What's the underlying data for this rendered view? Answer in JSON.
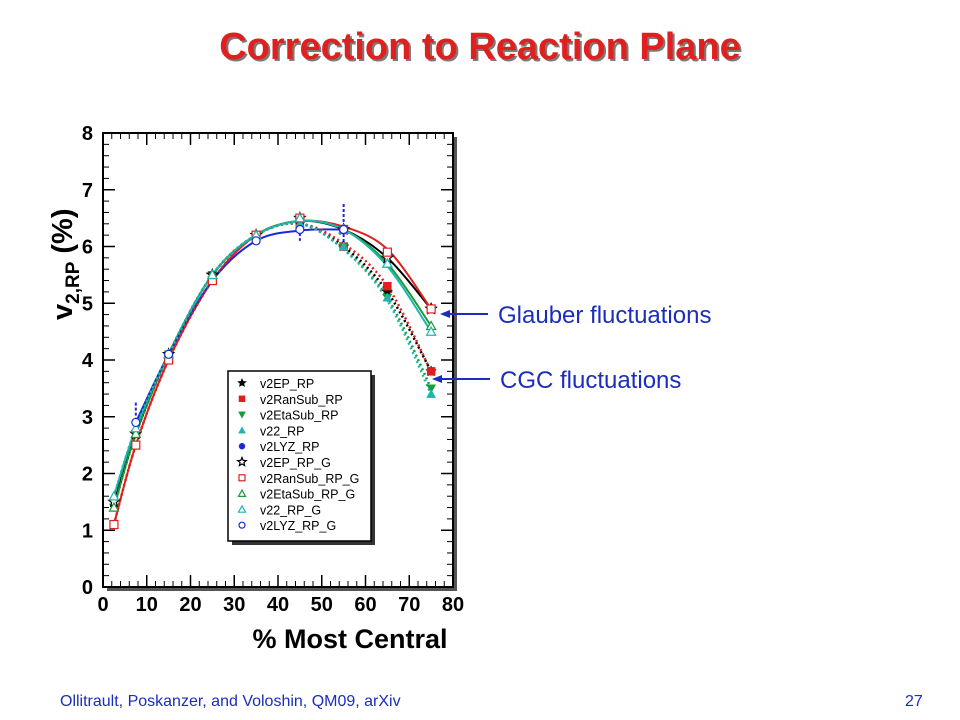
{
  "slide": {
    "title": "Correction to Reaction Plane",
    "callouts": {
      "glauber": "Glauber fluctuations",
      "cgc": "CGC fluctuations"
    },
    "footer_left": "Ollitrault, Poskanzer, and Voloshin, QM09, arXiv",
    "page_number": "27",
    "accent_color": "#e0201e",
    "callout_color": "#1b2dbd"
  },
  "chart_data": {
    "type": "scatter",
    "title": "",
    "xlabel": "% Most Central",
    "ylabel_main": "v",
    "ylabel_sub": "2,RP",
    "ylabel_unit": "(%)",
    "xlim": [
      0,
      80
    ],
    "ylim": [
      0,
      8
    ],
    "x_ticks": [
      0,
      10,
      20,
      30,
      40,
      50,
      60,
      70,
      80
    ],
    "y_ticks": [
      0,
      1,
      2,
      3,
      4,
      5,
      6,
      7,
      8
    ],
    "legend_position": "bottom-center",
    "series": [
      {
        "name": "v2EP_RP",
        "marker": "star-filled",
        "color": "#000000",
        "x": [
          2.5,
          7.5,
          15,
          25,
          35,
          45,
          55,
          65,
          75
        ],
        "y": [
          1.5,
          2.7,
          4.1,
          5.5,
          6.2,
          6.4,
          6.0,
          5.2,
          3.8
        ]
      },
      {
        "name": "v2RanSub_RP",
        "marker": "square-filled",
        "color": "#e01e1e",
        "x": [
          2.5,
          7.5,
          15,
          25,
          35,
          45,
          55,
          65,
          75
        ],
        "y": [
          1.1,
          2.5,
          4.0,
          5.4,
          6.2,
          6.4,
          6.0,
          5.3,
          3.8
        ]
      },
      {
        "name": "v2EtaSub_RP",
        "marker": "triangle-down-filled",
        "color": "#1a9a3a",
        "x": [
          2.5,
          7.5,
          15,
          25,
          35,
          45,
          55,
          65,
          75
        ],
        "y": [
          1.4,
          2.7,
          4.1,
          5.5,
          6.2,
          6.4,
          6.0,
          5.1,
          3.5
        ]
      },
      {
        "name": "v22_RP",
        "marker": "triangle-up-filled",
        "color": "#1fb5b0",
        "x": [
          2.5,
          7.5,
          15,
          25,
          35,
          45,
          55,
          65,
          75
        ],
        "y": [
          1.6,
          2.8,
          4.1,
          5.5,
          6.2,
          6.4,
          6.0,
          5.1,
          3.4
        ]
      },
      {
        "name": "v2LYZ_RP",
        "marker": "circle-filled",
        "color": "#1a2bd6",
        "x": [
          7.5,
          15,
          35,
          45,
          55
        ],
        "y": [
          2.9,
          4.1,
          6.1,
          6.3,
          6.3
        ]
      },
      {
        "name": "v2EP_RP_G",
        "marker": "star-open",
        "color": "#000000",
        "x": [
          2.5,
          7.5,
          15,
          25,
          35,
          45,
          55,
          65,
          75
        ],
        "y": [
          1.5,
          2.7,
          4.1,
          5.5,
          6.2,
          6.5,
          6.3,
          5.8,
          4.9
        ]
      },
      {
        "name": "v2RanSub_RP_G",
        "marker": "square-open",
        "color": "#e01e1e",
        "x": [
          2.5,
          7.5,
          15,
          25,
          35,
          45,
          55,
          65,
          75
        ],
        "y": [
          1.1,
          2.5,
          4.0,
          5.4,
          6.2,
          6.5,
          6.3,
          5.9,
          4.9
        ]
      },
      {
        "name": "v2EtaSub_RP_G",
        "marker": "triangle-up-open",
        "color": "#1a9a3a",
        "x": [
          2.5,
          7.5,
          15,
          25,
          35,
          45,
          55,
          65,
          75
        ],
        "y": [
          1.4,
          2.7,
          4.1,
          5.5,
          6.2,
          6.5,
          6.3,
          5.7,
          4.6
        ]
      },
      {
        "name": "v22_RP_G",
        "marker": "triangle-up-open",
        "color": "#1fb5b0",
        "x": [
          2.5,
          7.5,
          15,
          25,
          35,
          45,
          55,
          65,
          75
        ],
        "y": [
          1.6,
          2.8,
          4.1,
          5.5,
          6.2,
          6.5,
          6.3,
          5.7,
          4.5
        ]
      },
      {
        "name": "v2LYZ_RP_G",
        "marker": "circle-open",
        "color": "#1a2bd6",
        "x": [
          7.5,
          15,
          35,
          45,
          55
        ],
        "y": [
          2.9,
          4.1,
          6.1,
          6.3,
          6.3
        ]
      }
    ],
    "fit_curves": [
      {
        "style": "solid",
        "color": "#000000",
        "x": [
          2.5,
          7.5,
          15,
          25,
          35,
          45,
          55,
          65,
          75
        ],
        "y": [
          1.5,
          2.7,
          4.1,
          5.5,
          6.2,
          6.45,
          6.3,
          5.8,
          4.9
        ]
      },
      {
        "style": "solid",
        "color": "#e01e1e",
        "x": [
          2.5,
          7.5,
          15,
          25,
          35,
          45,
          55,
          65,
          75
        ],
        "y": [
          1.1,
          2.5,
          4.0,
          5.4,
          6.2,
          6.45,
          6.35,
          5.95,
          4.9
        ]
      },
      {
        "style": "solid",
        "color": "#1a9a3a",
        "x": [
          2.5,
          7.5,
          15,
          25,
          35,
          45,
          55,
          65,
          75
        ],
        "y": [
          1.4,
          2.7,
          4.1,
          5.5,
          6.2,
          6.45,
          6.3,
          5.7,
          4.6
        ]
      },
      {
        "style": "solid",
        "color": "#1fb5b0",
        "x": [
          2.5,
          7.5,
          15,
          25,
          35,
          45,
          55,
          65,
          75
        ],
        "y": [
          1.6,
          2.8,
          4.1,
          5.5,
          6.2,
          6.45,
          6.3,
          5.65,
          4.5
        ]
      },
      {
        "style": "solid",
        "color": "#1a2bd6",
        "x": [
          7.5,
          15,
          25,
          35,
          45,
          55
        ],
        "y": [
          2.9,
          4.1,
          5.4,
          6.1,
          6.28,
          6.3
        ]
      },
      {
        "style": "dotted",
        "color": "#000000",
        "x": [
          2.5,
          7.5,
          15,
          25,
          35,
          45,
          55,
          65,
          75
        ],
        "y": [
          1.5,
          2.7,
          4.1,
          5.5,
          6.2,
          6.4,
          6.0,
          5.2,
          3.8
        ]
      },
      {
        "style": "dotted",
        "color": "#e01e1e",
        "x": [
          2.5,
          7.5,
          15,
          25,
          35,
          45,
          55,
          65,
          75
        ],
        "y": [
          1.1,
          2.5,
          4.0,
          5.4,
          6.2,
          6.4,
          6.05,
          5.3,
          3.8
        ]
      },
      {
        "style": "dotted",
        "color": "#1a9a3a",
        "x": [
          2.5,
          7.5,
          15,
          25,
          35,
          45,
          55,
          65,
          75
        ],
        "y": [
          1.4,
          2.7,
          4.1,
          5.5,
          6.2,
          6.4,
          5.95,
          5.1,
          3.5
        ]
      },
      {
        "style": "dotted",
        "color": "#1fb5b0",
        "x": [
          2.5,
          7.5,
          15,
          25,
          35,
          45,
          55,
          65,
          75
        ],
        "y": [
          1.6,
          2.8,
          4.1,
          5.5,
          6.2,
          6.4,
          5.95,
          5.05,
          3.4
        ]
      }
    ],
    "error_bars": [
      {
        "x": 7.5,
        "y_low": 2.8,
        "y_high": 3.25,
        "color": "#1a2bd6"
      },
      {
        "x": 45,
        "y_low": 6.1,
        "y_high": 6.5,
        "color": "#1a2bd6"
      },
      {
        "x": 55,
        "y_low": 5.95,
        "y_high": 6.75,
        "color": "#1a2bd6"
      }
    ]
  }
}
